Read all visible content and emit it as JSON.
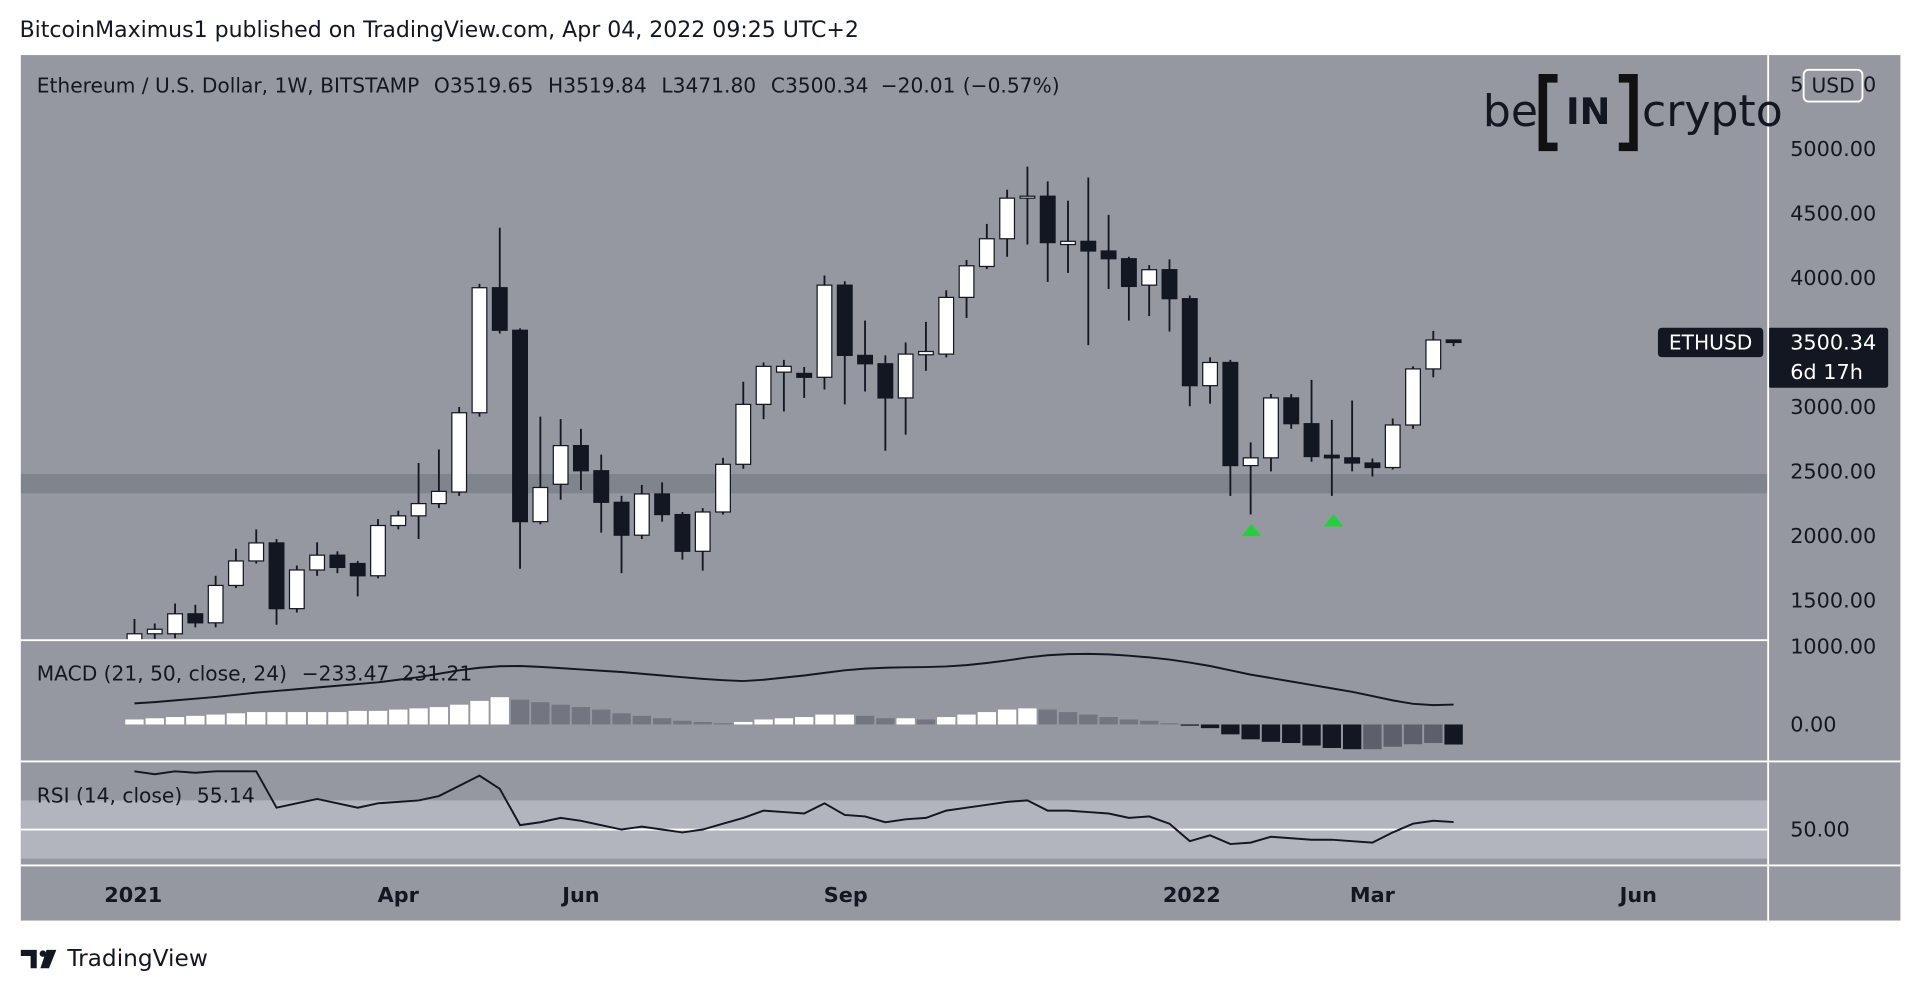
{
  "header": {
    "text": "BitcoinMaximus1 published on TradingView.com, Apr 04, 2022 09:25 UTC+2"
  },
  "legend": {
    "symbol": "Ethereum / U.S. Dollar, 1W, BITSTAMP",
    "fields": [
      {
        "key": "O",
        "value": 3519.65
      },
      {
        "key": "H",
        "value": 3519.84
      },
      {
        "key": "L",
        "value": 3471.8,
        "label": "3471.80"
      },
      {
        "key": "C",
        "value": 3500.34
      }
    ],
    "change": {
      "value": -20.01,
      "label": "−20.01"
    },
    "change_pct": {
      "value": -0.57,
      "label": "(−0.57%)"
    }
  },
  "logo": {
    "left": "be",
    "middle": "IN",
    "right": "crypto"
  },
  "footer": {
    "brand": "TradingView"
  },
  "chart_data": [
    {
      "type": "candlestick",
      "categories": [
        null,
        null,
        null,
        null,
        null,
        null,
        null,
        null,
        null,
        null,
        null,
        null,
        null,
        null,
        null,
        null,
        null,
        null,
        null,
        null,
        null,
        null,
        null,
        null,
        null,
        null,
        null,
        null,
        null,
        null,
        null,
        null,
        null,
        null,
        null,
        null,
        null,
        null,
        null,
        null,
        null,
        null,
        null,
        null,
        null,
        null,
        null,
        null,
        null,
        null,
        null,
        null,
        null,
        null,
        null,
        null,
        null,
        null,
        null,
        null,
        null,
        null,
        null,
        null,
        null,
        null
      ],
      "open": [
        1150,
        1240,
        1240,
        1395,
        1325,
        1615,
        1805,
        1945,
        1435,
        1735,
        1850,
        1785,
        1690,
        2080,
        2155,
        2250,
        2340,
        2955,
        3925,
        3595,
        2110,
        2400,
        2700,
        2505,
        2260,
        2005,
        2325,
        2165,
        1880,
        2185,
        2555,
        3020,
        3270,
        3260,
        3230,
        3945,
        3400,
        3335,
        3070,
        3405,
        3410,
        3850,
        4090,
        4305,
        4620,
        4635,
        4260,
        4285,
        4210,
        4150,
        3945,
        4065,
        3840,
        3165,
        3345,
        2545,
        2605,
        3070,
        2870,
        2625,
        2605,
        2565,
        2530,
        2860,
        3295,
        3519.65
      ],
      "high": [
        1355,
        1320,
        1475,
        1465,
        1690,
        1900,
        2050,
        1975,
        1770,
        1950,
        1880,
        1805,
        2130,
        2195,
        2565,
        2670,
        3000,
        3955,
        4390,
        3610,
        2925,
        2905,
        2830,
        2630,
        2310,
        2395,
        2415,
        2185,
        2215,
        2605,
        3195,
        3345,
        3365,
        3310,
        4020,
        3975,
        3670,
        3400,
        3500,
        3660,
        3905,
        4140,
        4420,
        4685,
        4865,
        4750,
        4600,
        4780,
        4490,
        4165,
        4100,
        4145,
        3865,
        3385,
        3365,
        2725,
        3100,
        3100,
        3210,
        2900,
        3050,
        2600,
        2910,
        3315,
        3590,
        3519.84
      ],
      "low": [
        1050,
        1200,
        1205,
        1290,
        1290,
        1595,
        1785,
        1310,
        1405,
        1690,
        1710,
        1530,
        1670,
        2050,
        1975,
        2215,
        2310,
        2925,
        3570,
        1745,
        2090,
        2280,
        2355,
        2025,
        1710,
        1975,
        2110,
        1815,
        1730,
        2165,
        2520,
        2905,
        2965,
        3070,
        3135,
        3020,
        3120,
        2660,
        2785,
        3280,
        3385,
        3690,
        4070,
        4165,
        4260,
        3970,
        4040,
        3480,
        3915,
        3670,
        3705,
        3585,
        3005,
        3025,
        2310,
        2165,
        2500,
        2830,
        2575,
        2310,
        2500,
        2460,
        2515,
        2830,
        3230,
        3471.8
      ],
      "close": [
        1240,
        1275,
        1395,
        1325,
        1615,
        1805,
        1945,
        1435,
        1735,
        1850,
        1755,
        1690,
        2080,
        2155,
        2250,
        2345,
        2955,
        3925,
        3595,
        2110,
        2375,
        2700,
        2505,
        2260,
        2005,
        2325,
        2165,
        1880,
        2185,
        2555,
        3020,
        3315,
        3315,
        3230,
        3945,
        3400,
        3335,
        3070,
        3410,
        3430,
        3850,
        4095,
        4305,
        4620,
        4635,
        4275,
        4285,
        4210,
        4150,
        3935,
        4065,
        3840,
        3165,
        3345,
        2545,
        2605,
        3070,
        2870,
        2615,
        2605,
        2565,
        2530,
        2860,
        3295,
        3519.65,
        3500.34
      ],
      "xlim": [
        -5.6,
        80.5
      ],
      "xticks": [
        {
          "value": -0.06,
          "label": "2021"
        },
        {
          "value": 13.0,
          "label": "Apr"
        },
        {
          "value": 22.0,
          "label": "Jun"
        },
        {
          "value": 35.05,
          "label": "Sep"
        },
        {
          "value": 52.1,
          "label": "2022"
        },
        {
          "value": 61.0,
          "label": "Mar"
        },
        {
          "value": 74.1,
          "label": "Jun"
        }
      ],
      "ylim": [
        1190,
        5730
      ],
      "yticks": [
        {
          "value": 1000,
          "label": "1000.00"
        },
        {
          "value": 1500,
          "label": "1500.00"
        },
        {
          "value": 2000,
          "label": "2000.00"
        },
        {
          "value": 2500,
          "label": "2500.00"
        },
        {
          "value": 3000,
          "label": "3000.00"
        },
        {
          "value": 3500,
          "label": "3500.00"
        },
        {
          "value": 4000,
          "label": "4000.00"
        },
        {
          "value": 4500,
          "label": "4500.00"
        },
        {
          "value": 5000,
          "label": "5000.00"
        },
        {
          "value": 5500,
          "label": "5500.00"
        }
      ],
      "up_color": "#ffffff",
      "down_color": "#131722",
      "wick_color": "#131722",
      "zones": [
        {
          "from": 2330,
          "to": 2480,
          "color": "#7d808a"
        }
      ],
      "badge": {
        "symbol": "ETHUSD",
        "countdown": "6d 17h",
        "currency": "USD",
        "color": "#131722"
      }
    },
    {
      "type": "macd",
      "title": "MACD (21, 50, close, 24)",
      "histogram": [
        58,
        72,
        86,
        100,
        115,
        130,
        144,
        144,
        144,
        144,
        144,
        158,
        158,
        173,
        187,
        202,
        230,
        274,
        317,
        288,
        259,
        230,
        202,
        173,
        130,
        100,
        72,
        43,
        29,
        14,
        29,
        58,
        72,
        86,
        115,
        115,
        100,
        72,
        72,
        58,
        86,
        115,
        144,
        173,
        187,
        173,
        144,
        115,
        86,
        58,
        43,
        14,
        -14,
        -43,
        -115,
        -173,
        -202,
        -216,
        -245,
        -274,
        -288,
        -288,
        -259,
        -230,
        -216,
        -233.47
      ],
      "legend_label": "−233.47",
      "line": [
        245,
        260,
        280,
        300,
        320,
        345,
        370,
        390,
        410,
        430,
        450,
        470,
        490,
        520,
        550,
        590,
        630,
        660,
        677,
        680,
        670,
        655,
        640,
        625,
        610,
        590,
        570,
        550,
        530,
        515,
        505,
        520,
        545,
        570,
        600,
        630,
        650,
        660,
        665,
        668,
        675,
        690,
        715,
        745,
        780,
        805,
        818,
        821,
        815,
        800,
        780,
        755,
        720,
        680,
        630,
        580,
        540,
        500,
        460,
        420,
        380,
        330,
        280,
        240,
        225,
        231.21
      ],
      "ylim": [
        -430,
        980
      ],
      "yticks": [
        {
          "value": 0,
          "label": "0.00"
        }
      ],
      "colors": {
        "grow_above": "#ffffff",
        "fall_above": "#737680",
        "grow_below": "#5d606b",
        "fall_below": "#131722"
      },
      "line_color": "#131722"
    },
    {
      "type": "line",
      "title": "RSI (14, close)",
      "values": [
        90,
        88,
        90,
        89,
        90,
        90,
        90,
        65,
        68,
        71,
        68,
        65,
        68,
        69,
        70,
        73,
        80,
        87,
        78,
        53,
        55,
        58,
        56,
        53,
        50,
        52,
        50,
        48,
        50,
        54,
        58,
        63,
        62,
        61,
        68,
        60,
        59,
        55,
        57,
        58,
        63,
        65,
        67,
        69,
        70,
        63,
        63,
        62,
        61,
        58,
        59,
        54,
        42,
        46,
        40,
        41,
        45,
        44,
        43,
        43,
        42,
        41,
        48,
        54,
        56,
        55.14
      ],
      "ylim": [
        25.3,
        96.8
      ],
      "yticks": [
        {
          "value": 50,
          "label": "50.00"
        }
      ],
      "bands": [
        30,
        70
      ],
      "band_color": "#b2b5be",
      "color": "#131722"
    }
  ]
}
